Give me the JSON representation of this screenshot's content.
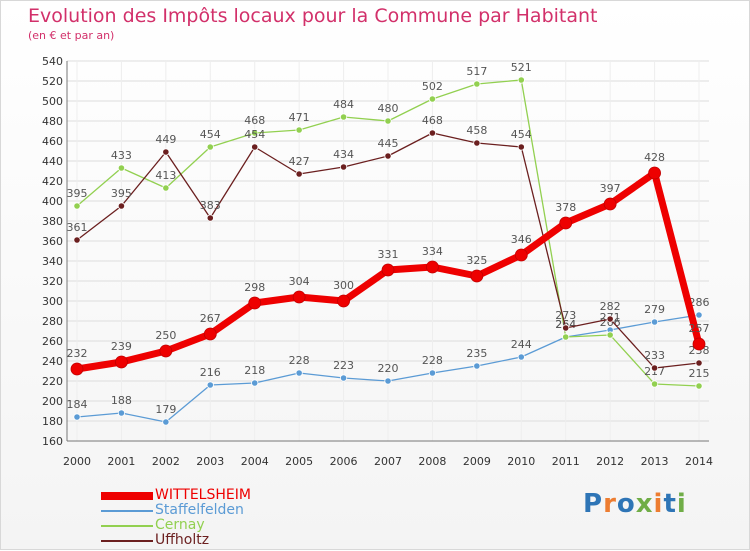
{
  "title": "Evolution des Impôts locaux pour la Commune par Habitant",
  "subtitle": "(en € et par an)",
  "logo_text": "Proxiti",
  "chart_data": {
    "type": "line",
    "title": "Evolution des Impôts locaux pour la Commune par Habitant",
    "subtitle": "(en € et par an)",
    "x": [
      "2000",
      "2001",
      "2002",
      "2003",
      "2004",
      "2005",
      "2006",
      "2007",
      "2008",
      "2009",
      "2010",
      "2011",
      "2012",
      "2013",
      "2014"
    ],
    "ylim": [
      160,
      540
    ],
    "ytick_step": 20,
    "grid": true,
    "legend": "bottom-left",
    "series": [
      {
        "name": "WITTELSHEIM",
        "color": "#ee0000",
        "values": [
          232,
          239,
          250,
          267,
          298,
          304,
          300,
          331,
          334,
          325,
          346,
          378,
          397,
          428,
          257
        ]
      },
      {
        "name": "Staffelfelden",
        "color": "#5b9bd5",
        "values": [
          184,
          188,
          179,
          216,
          218,
          228,
          223,
          220,
          228,
          235,
          244,
          264,
          271,
          279,
          286
        ]
      },
      {
        "name": "Cernay",
        "color": "#92d050",
        "values": [
          395,
          433,
          413,
          454,
          468,
          471,
          484,
          480,
          502,
          517,
          521,
          264,
          266,
          217,
          215
        ]
      },
      {
        "name": "Uffholtz",
        "color": "#6b1f1f",
        "values": [
          361,
          395,
          449,
          383,
          454,
          427,
          434,
          445,
          468,
          458,
          454,
          273,
          282,
          233,
          238
        ]
      }
    ]
  }
}
